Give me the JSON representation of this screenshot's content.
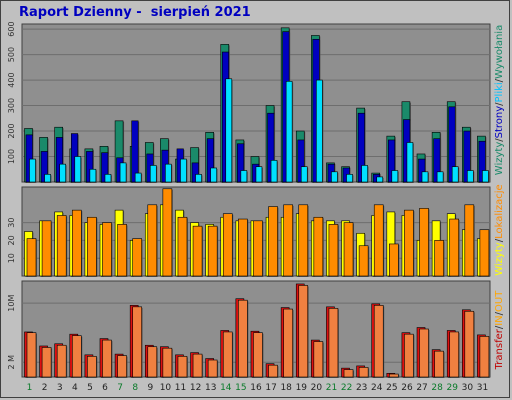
{
  "title": "Raport Dzienny -  sierpień 2021",
  "colors": {
    "background": "#c0c0c0",
    "plot_bg": "#8f8f8f",
    "weekday_label": "#0a7a2a",
    "weekend_label": "#1a8a4a",
    "dark_label": "#222222"
  },
  "chart_data": [
    {
      "type": "bar",
      "panel": "top",
      "categories": [
        "1",
        "2",
        "3",
        "4",
        "5",
        "6",
        "7",
        "8",
        "9",
        "10",
        "11",
        "12",
        "13",
        "14",
        "15",
        "16",
        "17",
        "18",
        "19",
        "20",
        "21",
        "22",
        "23",
        "24",
        "25",
        "26",
        "27",
        "28",
        "29",
        "30",
        "31"
      ],
      "ylim": [
        0,
        620
      ],
      "yticks": [
        "100",
        "200",
        "300",
        "400",
        "500",
        "600"
      ],
      "ytick_values": [
        100,
        200,
        300,
        400,
        500,
        600
      ],
      "legend": [
        "Wizyty",
        "Strony",
        "Pliki",
        "Wywołania"
      ],
      "legend_colors": [
        "#1a8a6a",
        "#0000c0",
        "#00c0ff",
        "#1a8a6a"
      ],
      "series": [
        {
          "name": "Wywołania",
          "color": "#1a8a6a",
          "values": [
            210,
            175,
            215,
            130,
            130,
            140,
            240,
            140,
            155,
            170,
            90,
            135,
            195,
            540,
            165,
            100,
            300,
            605,
            200,
            575,
            75,
            60,
            290,
            35,
            180,
            315,
            110,
            195,
            315,
            215,
            180
          ]
        },
        {
          "name": "Strony",
          "color": "#0000c0",
          "values": [
            185,
            120,
            175,
            190,
            120,
            115,
            95,
            240,
            110,
            125,
            130,
            75,
            170,
            510,
            150,
            70,
            270,
            590,
            165,
            560,
            70,
            55,
            270,
            30,
            165,
            245,
            90,
            170,
            295,
            200,
            160
          ]
        },
        {
          "name": "Pliki",
          "color": "#00e0ff",
          "values": [
            90,
            30,
            70,
            100,
            50,
            30,
            75,
            35,
            65,
            70,
            90,
            30,
            55,
            405,
            45,
            60,
            85,
            395,
            60,
            400,
            40,
            30,
            65,
            20,
            45,
            155,
            40,
            40,
            60,
            45,
            45
          ]
        }
      ]
    },
    {
      "type": "bar",
      "panel": "middle",
      "categories": [
        "1",
        "2",
        "3",
        "4",
        "5",
        "6",
        "7",
        "8",
        "9",
        "10",
        "11",
        "12",
        "13",
        "14",
        "15",
        "16",
        "17",
        "18",
        "19",
        "20",
        "21",
        "22",
        "23",
        "24",
        "25",
        "26",
        "27",
        "28",
        "29",
        "30",
        "31"
      ],
      "ylim": [
        0,
        50
      ],
      "yticks": [
        "10",
        "20",
        "30"
      ],
      "ytick_values": [
        10,
        20,
        30
      ],
      "legend": [
        "Wizyty",
        "Lokalizacje"
      ],
      "legend_colors": [
        "#ffff00",
        "#ff8c00"
      ],
      "series": [
        {
          "name": "Wizyty",
          "color": "#ffff00",
          "values": [
            25,
            31,
            36,
            34,
            30,
            29,
            37,
            20,
            35,
            40,
            37,
            30,
            29,
            33,
            31,
            31,
            33,
            33,
            35,
            31,
            31,
            31,
            24,
            34,
            36,
            34,
            20,
            31,
            35,
            26,
            21
          ]
        },
        {
          "name": "Lokalizacje",
          "color": "#ff8c00",
          "values": [
            21,
            31,
            34,
            37,
            33,
            30,
            29,
            21,
            40,
            49,
            33,
            28,
            28,
            35,
            32,
            31,
            39,
            40,
            40,
            33,
            29,
            30,
            17,
            40,
            18,
            37,
            38,
            20,
            32,
            40,
            26
          ]
        }
      ]
    },
    {
      "type": "bar",
      "panel": "bottom",
      "categories": [
        "1",
        "2",
        "3",
        "4",
        "5",
        "6",
        "7",
        "8",
        "9",
        "10",
        "11",
        "12",
        "13",
        "14",
        "15",
        "16",
        "17",
        "18",
        "19",
        "20",
        "21",
        "22",
        "23",
        "24",
        "25",
        "26",
        "27",
        "28",
        "29",
        "30",
        "31"
      ],
      "ylim": [
        0,
        13
      ],
      "yticks": [
        "2 M",
        "10M"
      ],
      "ytick_values": [
        2,
        10
      ],
      "legend": [
        "Transfer",
        "IN",
        "OUT"
      ],
      "legend_colors": [
        "#c00000",
        "#ffa500",
        "#ffa500"
      ],
      "series": [
        {
          "name": "Transfer",
          "color": "#dd1111",
          "values": [
            6.1,
            4.2,
            4.5,
            5.8,
            3.0,
            5.2,
            3.1,
            9.7,
            4.3,
            4.1,
            3.0,
            3.3,
            2.5,
            6.3,
            10.6,
            6.2,
            1.8,
            9.4,
            12.6,
            5.0,
            9.5,
            1.2,
            1.5,
            9.9,
            0.5,
            6.0,
            6.7,
            3.7,
            6.3,
            9.1,
            5.7
          ]
        },
        {
          "name": "OUT",
          "color": "#f08040",
          "values": [
            6.0,
            4.0,
            4.3,
            5.6,
            2.8,
            5.0,
            2.9,
            9.5,
            4.1,
            3.9,
            2.8,
            3.1,
            2.3,
            6.1,
            10.4,
            6.0,
            1.6,
            9.2,
            12.4,
            4.8,
            9.3,
            1.0,
            1.3,
            9.7,
            0.4,
            5.8,
            6.5,
            3.5,
            6.1,
            8.9,
            5.5
          ]
        }
      ]
    }
  ],
  "x_labels": {
    "weekend_days": [
      "1",
      "7",
      "8",
      "14",
      "15",
      "21",
      "22",
      "28",
      "29"
    ]
  },
  "right_legend_top": [
    "Wizyty",
    "/",
    "Strony",
    "/",
    "Pliki",
    "/",
    "Wywołania"
  ],
  "right_legend_middle": [
    "Wizyty",
    "/",
    "Lokalizacje"
  ],
  "right_legend_bottom": [
    "Transfer",
    "/",
    "IN",
    "/",
    "OUT"
  ]
}
